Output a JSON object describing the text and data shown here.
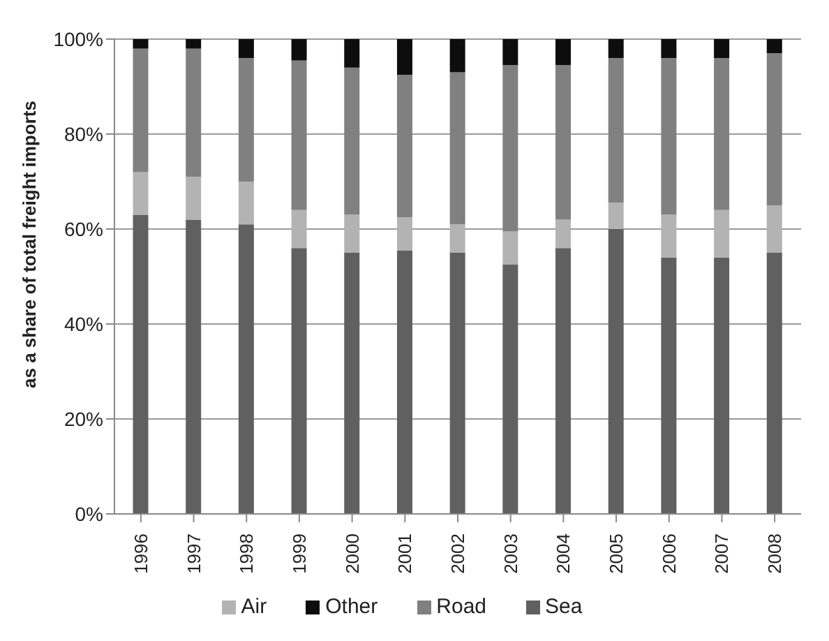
{
  "chart_data": {
    "type": "bar",
    "stacked": true,
    "ylabel": "as a share of total  freight imports",
    "categories": [
      "1996",
      "1997",
      "1998",
      "1999",
      "2000",
      "2001",
      "2002",
      "2003",
      "2004",
      "2005",
      "2006",
      "2007",
      "2008"
    ],
    "series": [
      {
        "name": "Sea",
        "color": "#606060",
        "values": [
          63,
          62,
          61,
          56,
          55,
          55.5,
          55,
          52.5,
          56,
          60,
          54,
          54,
          55
        ]
      },
      {
        "name": "Air",
        "color": "#b3b3b3",
        "values": [
          9,
          9,
          9,
          8,
          8,
          7,
          6,
          7,
          6,
          5.5,
          9,
          10,
          10
        ]
      },
      {
        "name": "Road",
        "color": "#808080",
        "values": [
          26,
          27,
          26,
          31.5,
          31,
          30,
          32,
          35,
          32.5,
          30.5,
          33,
          32,
          32
        ]
      },
      {
        "name": "Other",
        "color": "#0d0d0d",
        "values": [
          2,
          2,
          4,
          4.5,
          6,
          7.5,
          7,
          5.5,
          5.5,
          4,
          4,
          4,
          3
        ]
      }
    ],
    "ylim": [
      0,
      100
    ],
    "yticks": [
      {
        "value": 0,
        "label": "0%"
      },
      {
        "value": 20,
        "label": "20%"
      },
      {
        "value": 40,
        "label": "40%"
      },
      {
        "value": 60,
        "label": "60%"
      },
      {
        "value": 80,
        "label": "80%"
      },
      {
        "value": 100,
        "label": "100%"
      }
    ],
    "grid": "y",
    "legend": "bottom"
  }
}
